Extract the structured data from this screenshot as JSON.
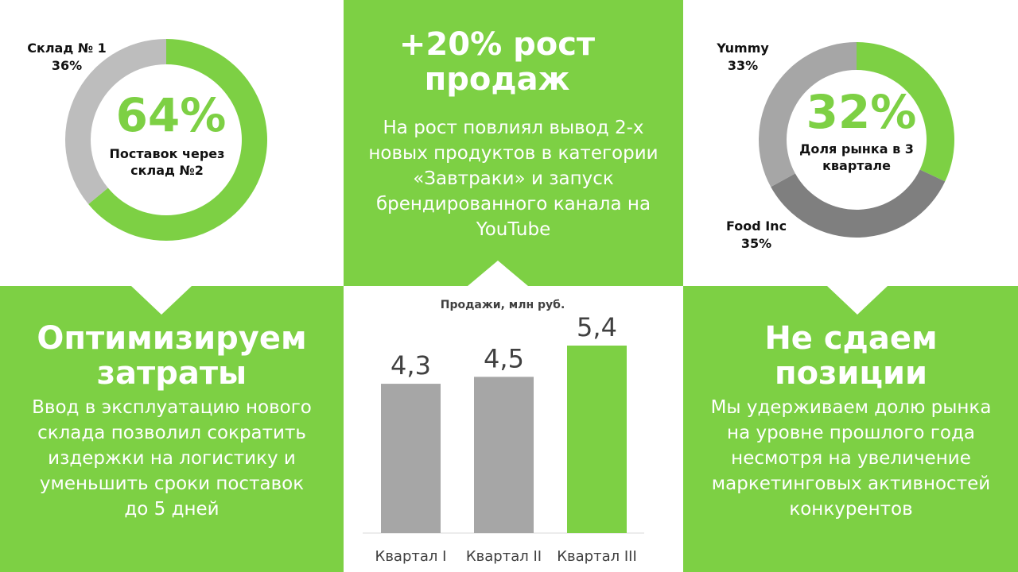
{
  "colors": {
    "green": "#7dd044",
    "light_gray": "#bdbdbd",
    "mid_gray": "#a6a6a6",
    "dark_gray": "#7f7f7f",
    "bar_gray": "#a6a6a6"
  },
  "left_panel": {
    "headline": "Оптимизируем затраты",
    "body": "Ввод в эксплуатацию нового склада позволил сократить издержки на логистику и уменьшить сроки поставок до 5 дней",
    "center_value": "64%",
    "center_label": "Поставок через склад №2",
    "outside_label_name": "Склад № 1",
    "outside_label_value": "36%"
  },
  "middle_panel": {
    "headline": "+20% рост продаж",
    "body": "На рост повлиял вывод 2-х новых продуктов в категории «Завтраки» и запуск брендированного канала на YouTube"
  },
  "right_panel": {
    "headline": "Не сдаем позиции",
    "body": "Мы удерживаем долю рынка на уровне прошлого года несмотря на увеличение маркетинговых активностей конкурентов",
    "center_value": "32%",
    "center_label": "Доля рынка в 3 квартале",
    "label_yummy_name": "Yummy",
    "label_yummy_value": "33%",
    "label_food_name": "Food Inc",
    "label_food_value": "35%"
  },
  "chart_data": [
    {
      "type": "pie",
      "title": "",
      "categories": [
        "Поставок через склад №2",
        "Склад № 1"
      ],
      "values": [
        64,
        36
      ],
      "colors": [
        "#7dd044",
        "#bdbdbd"
      ],
      "donut": true
    },
    {
      "type": "bar",
      "title": "Продажи, млн руб.",
      "categories": [
        "Квартал I",
        "Квартал II",
        "Квартал III"
      ],
      "values": [
        4.3,
        4.5,
        5.4
      ],
      "labels": [
        "4,3",
        "4,5",
        "5,4"
      ],
      "colors": [
        "#a6a6a6",
        "#a6a6a6",
        "#7dd044"
      ],
      "ylim": [
        0,
        5.4
      ],
      "grid": false
    },
    {
      "type": "pie",
      "title": "",
      "categories": [
        "Доля рынка в 3 квартале",
        "Food Inc",
        "Yummy"
      ],
      "values": [
        32,
        35,
        33
      ],
      "colors": [
        "#7dd044",
        "#7f7f7f",
        "#a6a6a6"
      ],
      "donut": true
    }
  ]
}
